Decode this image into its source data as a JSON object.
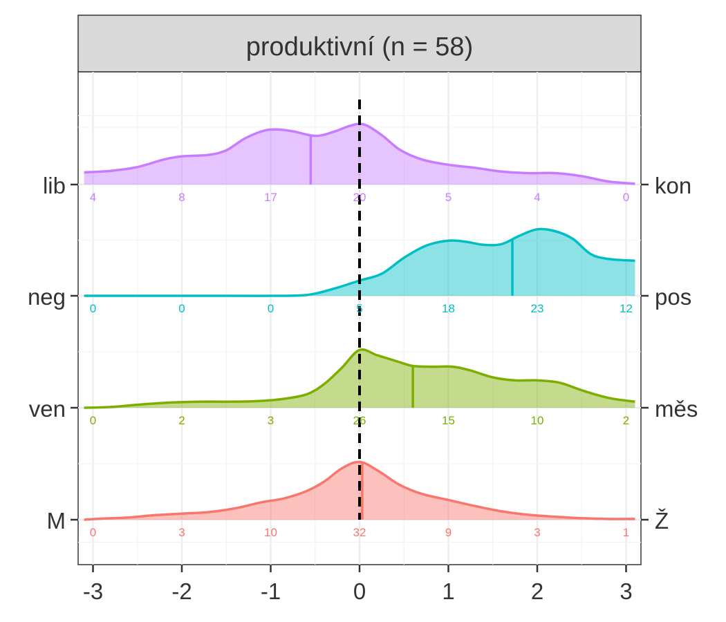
{
  "chart_data": {
    "type": "ridgeline-density",
    "facet_title": "produktivní (n = 58)",
    "xlim": [
      -3.1,
      3.1
    ],
    "x_ticks": [
      -3,
      -2,
      -1,
      0,
      1,
      2,
      3
    ],
    "x_tick_labels": [
      "-3",
      "-2",
      "-1",
      "0",
      "1",
      "2",
      "3"
    ],
    "reference_line_x": 0,
    "grid": true,
    "count_positions": [
      -3,
      -2,
      -1,
      0,
      1,
      2,
      3
    ],
    "series": [
      {
        "left_label": "M",
        "right_label": "Ž",
        "color": "#F8766D",
        "marker_x": 0.03,
        "counts": [
          "0",
          "3",
          "10",
          "32",
          "9",
          "3",
          "1"
        ],
        "density": [
          [
            -3.1,
            0.0
          ],
          [
            -2.9,
            0.03
          ],
          [
            -2.6,
            0.06
          ],
          [
            -2.3,
            0.12
          ],
          [
            -2.0,
            0.16
          ],
          [
            -1.7,
            0.2
          ],
          [
            -1.4,
            0.3
          ],
          [
            -1.1,
            0.46
          ],
          [
            -0.85,
            0.56
          ],
          [
            -0.6,
            0.75
          ],
          [
            -0.4,
            1.0
          ],
          [
            -0.2,
            1.35
          ],
          [
            0.0,
            1.52
          ],
          [
            0.2,
            1.3
          ],
          [
            0.45,
            0.92
          ],
          [
            0.7,
            0.68
          ],
          [
            1.0,
            0.52
          ],
          [
            1.3,
            0.36
          ],
          [
            1.6,
            0.22
          ],
          [
            1.9,
            0.13
          ],
          [
            2.2,
            0.08
          ],
          [
            2.5,
            0.04
          ],
          [
            2.8,
            0.02
          ],
          [
            3.1,
            0.02
          ]
        ]
      },
      {
        "left_label": "ven",
        "right_label": "měs",
        "color": "#7CAE00",
        "marker_x": 0.6,
        "counts": [
          "0",
          "2",
          "3",
          "26",
          "15",
          "10",
          "2"
        ],
        "density": [
          [
            -3.1,
            0.0
          ],
          [
            -2.8,
            0.02
          ],
          [
            -2.5,
            0.08
          ],
          [
            -2.1,
            0.14
          ],
          [
            -1.8,
            0.16
          ],
          [
            -1.5,
            0.16
          ],
          [
            -1.2,
            0.17
          ],
          [
            -0.9,
            0.22
          ],
          [
            -0.6,
            0.35
          ],
          [
            -0.4,
            0.62
          ],
          [
            -0.2,
            1.05
          ],
          [
            0.0,
            1.52
          ],
          [
            0.2,
            1.38
          ],
          [
            0.45,
            1.2
          ],
          [
            0.6,
            1.1
          ],
          [
            0.8,
            1.08
          ],
          [
            1.05,
            1.08
          ],
          [
            1.25,
            0.98
          ],
          [
            1.5,
            0.8
          ],
          [
            1.75,
            0.72
          ],
          [
            2.0,
            0.72
          ],
          [
            2.25,
            0.66
          ],
          [
            2.5,
            0.46
          ],
          [
            2.8,
            0.26
          ],
          [
            3.1,
            0.16
          ]
        ]
      },
      {
        "left_label": "neg",
        "right_label": "pos",
        "color": "#00BFC4",
        "marker_x": 1.72,
        "counts": [
          "0",
          "0",
          "0",
          "5",
          "18",
          "23",
          "12"
        ],
        "density": [
          [
            -3.1,
            0.0
          ],
          [
            -1.5,
            0.0
          ],
          [
            -1.0,
            0.0
          ],
          [
            -0.6,
            0.02
          ],
          [
            -0.3,
            0.18
          ],
          [
            0.0,
            0.4
          ],
          [
            0.25,
            0.58
          ],
          [
            0.5,
            1.0
          ],
          [
            0.75,
            1.32
          ],
          [
            1.0,
            1.45
          ],
          [
            1.2,
            1.42
          ],
          [
            1.4,
            1.34
          ],
          [
            1.6,
            1.36
          ],
          [
            1.8,
            1.58
          ],
          [
            2.0,
            1.75
          ],
          [
            2.2,
            1.7
          ],
          [
            2.4,
            1.5
          ],
          [
            2.6,
            1.1
          ],
          [
            2.8,
            0.97
          ],
          [
            3.1,
            0.92
          ]
        ]
      },
      {
        "left_label": "lib",
        "right_label": "kon",
        "color": "#C77CFF",
        "marker_x": -0.55,
        "counts": [
          "4",
          "8",
          "17",
          "20",
          "5",
          "4",
          "0"
        ],
        "density": [
          [
            -3.1,
            0.32
          ],
          [
            -2.8,
            0.36
          ],
          [
            -2.5,
            0.46
          ],
          [
            -2.2,
            0.66
          ],
          [
            -2.0,
            0.74
          ],
          [
            -1.7,
            0.78
          ],
          [
            -1.5,
            0.9
          ],
          [
            -1.3,
            1.2
          ],
          [
            -1.1,
            1.4
          ],
          [
            -0.95,
            1.45
          ],
          [
            -0.75,
            1.4
          ],
          [
            -0.5,
            1.28
          ],
          [
            -0.3,
            1.38
          ],
          [
            -0.1,
            1.55
          ],
          [
            0.05,
            1.58
          ],
          [
            0.25,
            1.3
          ],
          [
            0.45,
            0.92
          ],
          [
            0.7,
            0.66
          ],
          [
            1.0,
            0.52
          ],
          [
            1.3,
            0.44
          ],
          [
            1.6,
            0.34
          ],
          [
            1.9,
            0.3
          ],
          [
            2.2,
            0.3
          ],
          [
            2.5,
            0.22
          ],
          [
            2.8,
            0.08
          ],
          [
            3.1,
            0.02
          ]
        ]
      }
    ]
  }
}
